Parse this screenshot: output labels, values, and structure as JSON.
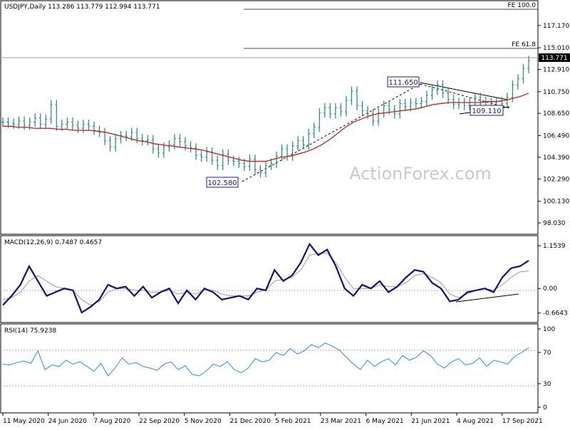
{
  "chart_data": [
    {
      "type": "line",
      "panel": "price",
      "title": "USDJPY,Daily 113.286 113.779 112.994 113.771",
      "symbol": "USDJPY",
      "timeframe": "Daily",
      "ohlc_last": {
        "open": 113.286,
        "high": 113.779,
        "low": 112.994,
        "close": 113.771
      },
      "last_price_label": "113.771",
      "ylim": [
        97.0,
        119.5
      ],
      "yticks": [
        "117.170",
        "115.010",
        "112.910",
        "110.750",
        "108.650",
        "106.490",
        "104.390",
        "102.290",
        "100.130",
        "98.030"
      ],
      "xticks": [
        "11 May 2020",
        "24 Jun 2020",
        "7 Aug 2020",
        "22 Sep 2020",
        "5 Nov 2020",
        "21 Dec 2020",
        "5 Feb 2021",
        "23 Mar 2021",
        "6 May 2021",
        "21 Jun 2021",
        "4 Aug 2021",
        "17 Sep 2021"
      ],
      "watermark": "ActionForex.com",
      "fib_levels": [
        {
          "label": "FE 100.0",
          "value": 118.6
        },
        {
          "label": "FE 61.8",
          "value": 114.7
        }
      ],
      "annotations": [
        {
          "label": "102.580",
          "value": 102.58
        },
        {
          "label": "111.650",
          "value": 111.65
        },
        {
          "label": "109.110",
          "value": 109.11
        }
      ],
      "series": [
        {
          "values": [
            107.8,
            107.7,
            107.6,
            107.9,
            107.5,
            107.8,
            108.2,
            107.6,
            108.1,
            109.5,
            107.4,
            107.6,
            107.8,
            107.5,
            107.2,
            107.6,
            107.4,
            107.0,
            106.8,
            106.0,
            105.4,
            106.2,
            106.5,
            106.4,
            106.8,
            106.2,
            106.0,
            106.1,
            105.2,
            104.8,
            105.4,
            105.6,
            106.2,
            105.9,
            105.5,
            105.3,
            104.6,
            104.4,
            104.9,
            104.1,
            103.6,
            104.7,
            104.1,
            104.0,
            103.8,
            103.5,
            104.2,
            103.2,
            102.9,
            103.6,
            103.8,
            104.5,
            105.2,
            104.5,
            105.5,
            106.0,
            105.6,
            106.7,
            107.3,
            108.7,
            109.2,
            108.6,
            109.2,
            108.8,
            109.9,
            110.8,
            109.4,
            108.9,
            108.6,
            107.9,
            108.7,
            109.4,
            109.0,
            108.6,
            109.6,
            109.3,
            109.7,
            109.6,
            109.8,
            110.4,
            110.9,
            111.4,
            110.6,
            110.0,
            109.5,
            109.7,
            109.4,
            109.7,
            110.2,
            109.8,
            109.3,
            109.7,
            109.8,
            109.6,
            110.2,
            111.4,
            112.0,
            113.0,
            113.77
          ]
        },
        {
          "name": "MA",
          "values": [
            107.4,
            107.4,
            107.3,
            107.3,
            107.2,
            107.2,
            107.2,
            107.1,
            107.1,
            107.0,
            107.0,
            107.0,
            106.9,
            106.8,
            106.6,
            106.4,
            106.2,
            106.0,
            105.9,
            105.7,
            105.6,
            105.5,
            105.4,
            105.3,
            105.2,
            105.1,
            104.9,
            104.7,
            104.5,
            104.3,
            104.1,
            104.0,
            104.0,
            104.0,
            104.2,
            104.4,
            104.5,
            104.7,
            104.9,
            105.2,
            105.6,
            106.1,
            106.7,
            107.3,
            107.8,
            108.1,
            108.4,
            108.6,
            108.7,
            108.8,
            108.9,
            109.0,
            109.1,
            109.3,
            109.5,
            109.6,
            109.7,
            109.7,
            109.7,
            109.7,
            109.7,
            109.8,
            109.8,
            109.9,
            110.1,
            110.3,
            110.6
          ]
        }
      ]
    },
    {
      "type": "line",
      "panel": "macd",
      "title": "MACD(12,26,9) 0.7487 0.4657",
      "yticks": [
        "1.1539",
        "0.00",
        "-0.6643"
      ],
      "ylim": [
        -0.9,
        1.35
      ],
      "series": [
        {
          "name": "MACD",
          "values": [
            -0.45,
            -0.2,
            0.1,
            0.6,
            0.2,
            -0.2,
            -0.1,
            0.0,
            -0.05,
            -0.65,
            -0.5,
            -0.3,
            0.1,
            0.0,
            0.05,
            -0.2,
            0.05,
            -0.25,
            -0.1,
            0.0,
            -0.4,
            -0.05,
            -0.3,
            0.0,
            -0.1,
            -0.3,
            -0.25,
            -0.2,
            -0.3,
            0.0,
            -0.05,
            0.5,
            0.2,
            0.35,
            0.7,
            1.2,
            0.9,
            1.05,
            0.6,
            0.0,
            -0.2,
            0.1,
            0.0,
            0.2,
            -0.1,
            0.05,
            0.3,
            0.5,
            0.45,
            0.15,
            0.0,
            -0.35,
            -0.3,
            -0.1,
            -0.05,
            0.0,
            -0.1,
            0.3,
            0.55,
            0.6,
            0.75
          ]
        },
        {
          "name": "Signal",
          "values": [
            -0.3,
            -0.25,
            -0.1,
            0.2,
            0.35,
            0.2,
            0.05,
            0.0,
            -0.05,
            -0.3,
            -0.45,
            -0.35,
            -0.1,
            0.0,
            0.0,
            -0.05,
            -0.05,
            -0.1,
            -0.1,
            -0.05,
            -0.15,
            -0.1,
            -0.15,
            -0.05,
            -0.05,
            -0.15,
            -0.2,
            -0.2,
            -0.2,
            -0.1,
            -0.05,
            0.2,
            0.25,
            0.3,
            0.5,
            0.9,
            0.95,
            0.95,
            0.7,
            0.3,
            0.0,
            0.0,
            0.0,
            0.1,
            0.05,
            0.05,
            0.15,
            0.35,
            0.4,
            0.3,
            0.15,
            -0.15,
            -0.25,
            -0.15,
            -0.05,
            0.0,
            -0.05,
            0.1,
            0.3,
            0.45,
            0.47
          ]
        }
      ]
    },
    {
      "type": "line",
      "panel": "rsi",
      "title": "RSI(14) 75.9238",
      "yticks": [
        "100",
        "70",
        "30",
        "0"
      ],
      "ylim": [
        0,
        100
      ],
      "series": [
        {
          "name": "RSI",
          "values": [
            55,
            54,
            57,
            59,
            56,
            72,
            48,
            54,
            52,
            60,
            55,
            58,
            52,
            46,
            56,
            40,
            50,
            63,
            55,
            57,
            52,
            50,
            47,
            55,
            58,
            48,
            53,
            42,
            40,
            46,
            55,
            52,
            58,
            48,
            44,
            50,
            62,
            58,
            60,
            70,
            66,
            75,
            68,
            72,
            80,
            76,
            82,
            78,
            73,
            64,
            55,
            48,
            60,
            52,
            58,
            62,
            54,
            66,
            60,
            64,
            72,
            66,
            55,
            50,
            58,
            62,
            54,
            56,
            63,
            52,
            60,
            58,
            55,
            65,
            70,
            76
          ]
        }
      ]
    }
  ]
}
